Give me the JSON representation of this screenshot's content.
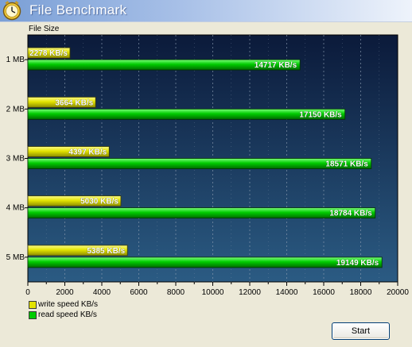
{
  "window": {
    "title": "File Benchmark",
    "icon": "benchmark-app-icon"
  },
  "colors": {
    "write": "#e3e300",
    "read": "#00cc00",
    "plot_bg_top": "#0b1a3a",
    "plot_bg_bottom": "#2b5b83",
    "grid": "#8a9bb0"
  },
  "legend": {
    "write_label": "write speed KB/s",
    "read_label": "read speed KB/s"
  },
  "chart_data": {
    "type": "bar",
    "orientation": "horizontal",
    "ylabel": "File Size",
    "categories": [
      "1 MB",
      "2 MB",
      "3 MB",
      "4 MB",
      "5 MB"
    ],
    "series": [
      {
        "name": "write speed KB/s",
        "values": [
          2278,
          3664,
          4397,
          5030,
          5385
        ],
        "labels": [
          "2278 KB/s",
          "3664 KB/s",
          "4397 KB/s",
          "5030 KB/s",
          "5385 KB/s"
        ]
      },
      {
        "name": "read speed KB/s",
        "values": [
          14717,
          17150,
          18571,
          18784,
          19149
        ],
        "labels": [
          "14717 KB/s",
          "17150 KB/s",
          "18571 KB/s",
          "18784 KB/s",
          "19149 KB/s"
        ]
      }
    ],
    "xlim": [
      0,
      20000
    ],
    "xticks": [
      0,
      2000,
      4000,
      6000,
      8000,
      10000,
      12000,
      14000,
      16000,
      18000,
      20000
    ],
    "grid": true,
    "legend_position": "bottom-left"
  },
  "buttons": {
    "start_label": "Start"
  }
}
